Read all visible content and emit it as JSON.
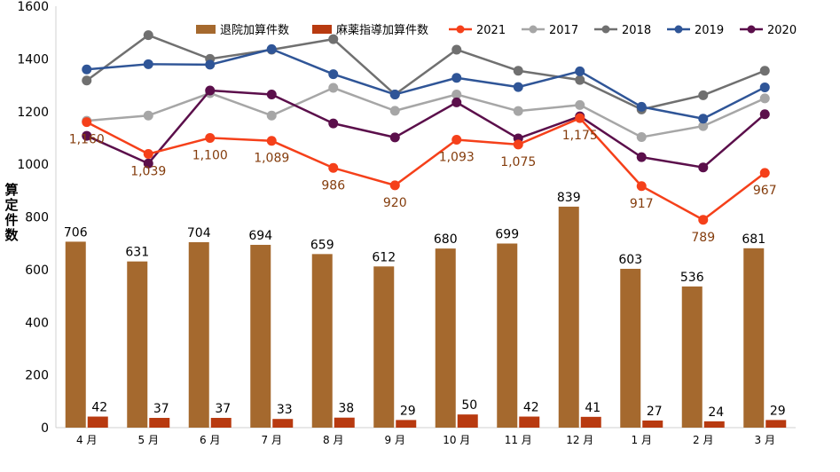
{
  "chart_data": {
    "type": "bar",
    "ylabel": "算定件数",
    "ylim": [
      0,
      1600
    ],
    "yticks": [
      "0",
      "200",
      "400",
      "600",
      "800",
      "1000",
      "1200",
      "1400",
      "1600"
    ],
    "grid": false,
    "legend_position": "top",
    "categories": [
      "4 月",
      "5 月",
      "6 月",
      "7 月",
      "8 月",
      "9 月",
      "10 月",
      "11 月",
      "12 月",
      "1 月",
      "2 月",
      "3 月"
    ],
    "bar_series": [
      {
        "name": "退院加算件数",
        "color": "#A5692E",
        "values": [
          706,
          631,
          704,
          694,
          659,
          612,
          680,
          699,
          839,
          603,
          536,
          681
        ],
        "labels": [
          "706",
          "631",
          "704",
          "694",
          "659",
          "612",
          "680",
          "699",
          "839",
          "603",
          "536",
          "681"
        ]
      },
      {
        "name": "麻薬指導加算件数",
        "color": "#B83A10",
        "values": [
          42,
          37,
          37,
          33,
          38,
          29,
          50,
          42,
          41,
          27,
          24,
          29
        ],
        "labels": [
          "42",
          "37",
          "37",
          "33",
          "38",
          "29",
          "50",
          "42",
          "41",
          "27",
          "24",
          "29"
        ]
      }
    ],
    "line_series": [
      {
        "name": "2021",
        "color": "#F5401A",
        "values": [
          1160,
          1039,
          1100,
          1089,
          986,
          920,
          1093,
          1075,
          1175,
          917,
          789,
          967
        ],
        "labels": [
          "1,160",
          "1,039",
          "1,100",
          "1,089",
          "986",
          "920",
          "1,093",
          "1,075",
          "1,175",
          "917",
          "789",
          "967"
        ],
        "label_color": "#843C0C"
      },
      {
        "name": "2017",
        "color": "#A6A6A6",
        "values": [
          1165,
          1185,
          1270,
          1185,
          1290,
          1203,
          1265,
          1202,
          1225,
          1103,
          1145,
          1250
        ]
      },
      {
        "name": "2018",
        "color": "#707070",
        "values": [
          1318,
          1490,
          1400,
          1435,
          1475,
          1265,
          1435,
          1355,
          1320,
          1208,
          1262,
          1355
        ]
      },
      {
        "name": "2019",
        "color": "#2F5597",
        "values": [
          1360,
          1380,
          1378,
          1437,
          1342,
          1265,
          1328,
          1293,
          1353,
          1218,
          1173,
          1292
        ]
      },
      {
        "name": "2020",
        "color": "#5B0F4B",
        "values": [
          1108,
          1003,
          1280,
          1265,
          1155,
          1102,
          1235,
          1098,
          1182,
          1027,
          988,
          1190
        ]
      }
    ]
  }
}
